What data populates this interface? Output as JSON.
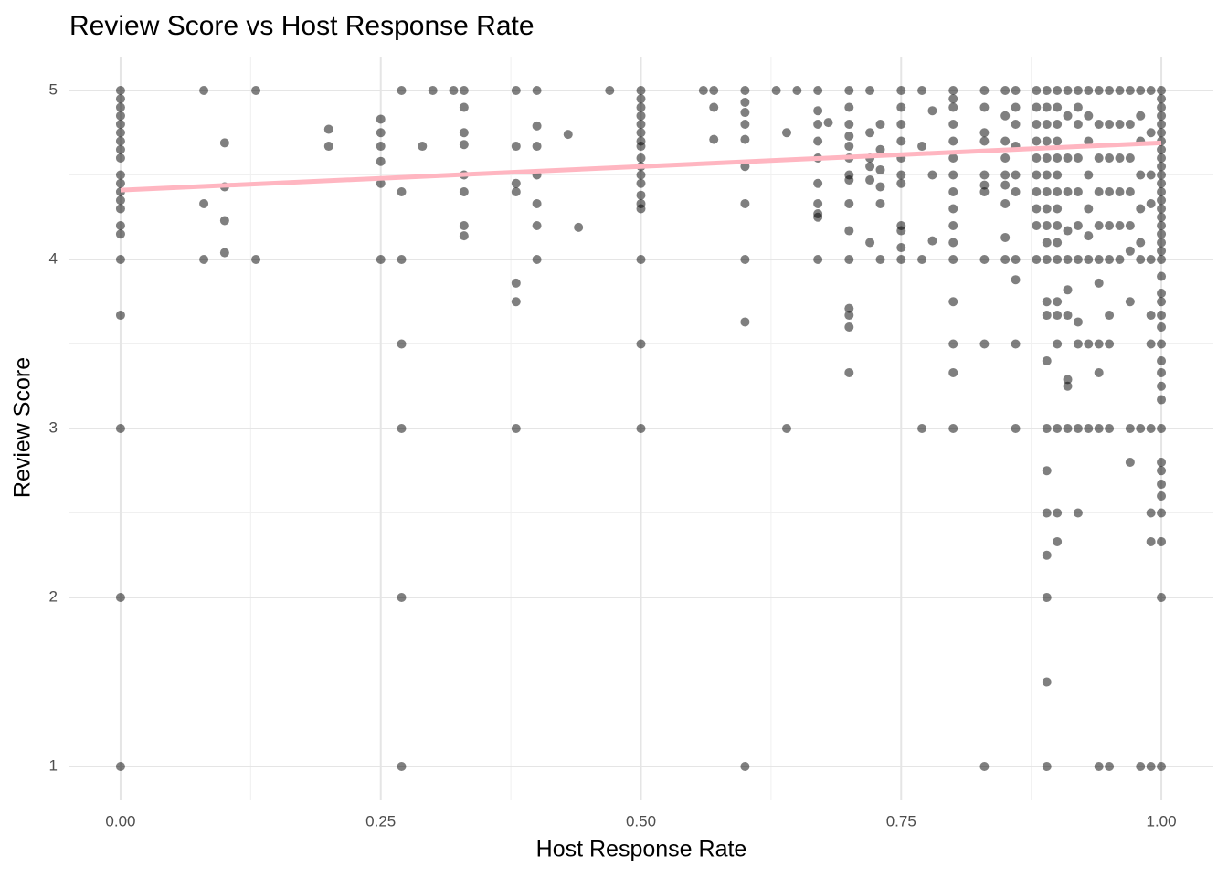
{
  "chart_data": {
    "type": "scatter",
    "title": "Review Score vs Host Response Rate",
    "x_label": "Host Response Rate",
    "y_label": "Review Score",
    "xlim": [
      -0.05,
      1.05
    ],
    "ylim": [
      0.8,
      5.2
    ],
    "xticks": [
      {
        "value": 0,
        "label": "0.00"
      },
      {
        "value": 0.25,
        "label": "0.25"
      },
      {
        "value": 0.5,
        "label": "0.50"
      },
      {
        "value": 0.75,
        "label": "0.75"
      },
      {
        "value": 1,
        "label": "1.00"
      }
    ],
    "yticks": [
      1,
      2,
      3,
      4,
      5
    ],
    "grid": true,
    "color": "#000000",
    "alpha": 0.5,
    "trend": {
      "x": [
        0,
        1
      ],
      "y": [
        4.41,
        4.69
      ],
      "color": "#FFB6C1"
    },
    "x": [
      0,
      0,
      0,
      0,
      0,
      0,
      0,
      0,
      0,
      0,
      0,
      0,
      0,
      0,
      0,
      0,
      0,
      0,
      0,
      0,
      0,
      0.08,
      0.08,
      0.08,
      0.1,
      0.1,
      0.1,
      0.1,
      0.13,
      0.13,
      0.2,
      0.2,
      0.25,
      0.25,
      0.25,
      0.25,
      0.25,
      0.25,
      0.27,
      0.27,
      0.27,
      0.27,
      0.27,
      0.27,
      0.27,
      0.29,
      0.3,
      0.32,
      0.33,
      0.33,
      0.33,
      0.33,
      0.33,
      0.33,
      0.33,
      0.33,
      0.38,
      0.38,
      0.38,
      0.38,
      0.38,
      0.38,
      0.38,
      0.4,
      0.4,
      0.4,
      0.4,
      0.4,
      0.4,
      0.4,
      0.43,
      0.44,
      0.47,
      0.5,
      0.5,
      0.5,
      0.5,
      0.5,
      0.5,
      0.5,
      0.5,
      0.5,
      0.5,
      0.5,
      0.5,
      0.5,
      0.5,
      0.5,
      0.5,
      0.5,
      0.5,
      0.56,
      0.57,
      0.57,
      0.57,
      0.6,
      0.6,
      0.6,
      0.6,
      0.6,
      0.6,
      0.6,
      0.6,
      0.6,
      0.6,
      0.63,
      0.64,
      0.64,
      0.65,
      0.67,
      0.67,
      0.67,
      0.67,
      0.67,
      0.67,
      0.67,
      0.67,
      0.67,
      0.67,
      0.68,
      0.7,
      0.7,
      0.7,
      0.7,
      0.7,
      0.7,
      0.7,
      0.7,
      0.7,
      0.7,
      0.7,
      0.7,
      0.7,
      0.7,
      0.7,
      0.72,
      0.72,
      0.72,
      0.72,
      0.72,
      0.72,
      0.73,
      0.73,
      0.73,
      0.73,
      0.73,
      0.73,
      0.75,
      0.75,
      0.75,
      0.75,
      0.75,
      0.75,
      0.75,
      0.75,
      0.75,
      0.75,
      0.75,
      0.77,
      0.77,
      0.77,
      0.77,
      0.78,
      0.78,
      0.78,
      0.8,
      0.8,
      0.8,
      0.8,
      0.8,
      0.8,
      0.8,
      0.8,
      0.8,
      0.8,
      0.8,
      0.8,
      0.8,
      0.8,
      0.8,
      0.8,
      0.83,
      0.83,
      0.83,
      0.83,
      0.83,
      0.83,
      0.83,
      0.83,
      0.83,
      0.83,
      0.85,
      0.85,
      0.85,
      0.85,
      0.85,
      0.85,
      0.85,
      0.85,
      0.85,
      0.86,
      0.86,
      0.86,
      0.86,
      0.86,
      0.86,
      0.86,
      0.86,
      0.86,
      0.86,
      0.88,
      0.88,
      0.88,
      0.88,
      0.88,
      0.88,
      0.88,
      0.88,
      0.88,
      0.88,
      0.89,
      0.89,
      0.89,
      0.89,
      0.89,
      0.89,
      0.89,
      0.89,
      0.89,
      0.89,
      0.89,
      0.89,
      0.89,
      0.89,
      0.89,
      0.89,
      0.89,
      0.89,
      0.89,
      0.89,
      0.89,
      0.9,
      0.9,
      0.9,
      0.9,
      0.9,
      0.9,
      0.9,
      0.9,
      0.9,
      0.9,
      0.9,
      0.9,
      0.9,
      0.9,
      0.9,
      0.9,
      0.9,
      0.91,
      0.91,
      0.91,
      0.91,
      0.91,
      0.91,
      0.91,
      0.91,
      0.91,
      0.91,
      0.91,
      0.92,
      0.92,
      0.92,
      0.92,
      0.92,
      0.92,
      0.92,
      0.92,
      0.92,
      0.92,
      0.92,
      0.93,
      0.93,
      0.93,
      0.93,
      0.93,
      0.93,
      0.93,
      0.93,
      0.93,
      0.94,
      0.94,
      0.94,
      0.94,
      0.94,
      0.94,
      0.94,
      0.94,
      0.94,
      0.94,
      0.94,
      0.95,
      0.95,
      0.95,
      0.95,
      0.95,
      0.95,
      0.95,
      0.95,
      0.95,
      0.95,
      0.96,
      0.96,
      0.96,
      0.96,
      0.96,
      0.96,
      0.97,
      0.97,
      0.97,
      0.97,
      0.97,
      0.97,
      0.97,
      0.97,
      0.97,
      0.98,
      0.98,
      0.98,
      0.98,
      0.98,
      0.98,
      0.98,
      0.98,
      0.98,
      0.99,
      0.99,
      0.99,
      0.99,
      0.99,
      0.99,
      0.99,
      0.99,
      0.99,
      0.99,
      0.99,
      1,
      1,
      1,
      1,
      1,
      1,
      1,
      1,
      1,
      1,
      1,
      1,
      1,
      1,
      1,
      1,
      1,
      1,
      1,
      1,
      1,
      1,
      1,
      1,
      1,
      1,
      1,
      1,
      1,
      1,
      1,
      1,
      1,
      1,
      1,
      1,
      1,
      1,
      1,
      1
    ],
    "values": [
      5,
      4.95,
      4.9,
      4.85,
      4.8,
      4.75,
      4.7,
      4.65,
      4.6,
      4.5,
      4.45,
      4.4,
      4.35,
      4.3,
      4.2,
      4.15,
      4,
      3.67,
      3,
      2,
      1,
      5,
      4.33,
      4,
      4.69,
      4.43,
      4.23,
      4.04,
      5,
      4,
      4.77,
      4.67,
      4.83,
      4.75,
      4.67,
      4.58,
      4.45,
      4,
      5,
      4.4,
      4,
      3.5,
      3,
      2,
      1,
      4.67,
      5,
      5,
      5,
      4.9,
      4.75,
      4.68,
      4.5,
      4.4,
      4.2,
      4.14,
      5,
      4.67,
      4.45,
      4.4,
      3.86,
      3.75,
      3,
      5,
      4.79,
      4.67,
      4.5,
      4.33,
      4.2,
      4,
      4.74,
      4.19,
      5,
      5,
      4.95,
      4.9,
      4.85,
      4.8,
      4.75,
      4.7,
      4.67,
      4.6,
      4.55,
      4.5,
      4.45,
      4.38,
      4.33,
      4.3,
      4,
      3.5,
      3,
      5,
      5,
      4.9,
      4.71,
      5,
      4.93,
      4.87,
      4.8,
      4.71,
      4.55,
      4.33,
      4,
      3.63,
      1,
      5,
      4.75,
      3,
      5,
      5,
      4.88,
      4.8,
      4.7,
      4.6,
      4.45,
      4.33,
      4.27,
      4.25,
      4,
      4.81,
      5,
      4.9,
      4.8,
      4.73,
      4.67,
      4.6,
      4.5,
      4.47,
      4.33,
      4.17,
      4,
      3.71,
      3.67,
      3.6,
      3.33,
      5,
      4.75,
      4.6,
      4.55,
      4.47,
      4.1,
      4.8,
      4.65,
      4.53,
      4.43,
      4.33,
      4,
      5,
      4.9,
      4.8,
      4.7,
      4.6,
      4.5,
      4.45,
      4.2,
      4.17,
      4.07,
      4,
      5,
      4.67,
      4,
      3,
      4.88,
      4.5,
      4.11,
      5,
      4.95,
      4.9,
      4.8,
      4.7,
      4.6,
      4.5,
      4.4,
      4.3,
      4.2,
      4.1,
      4,
      3.75,
      3.5,
      3.33,
      3,
      5,
      4.9,
      4.75,
      4.7,
      4.5,
      4.44,
      4.4,
      4,
      3.5,
      1,
      5,
      4.85,
      4.7,
      4.6,
      4.5,
      4.44,
      4.33,
      4.13,
      4,
      5,
      4.9,
      4.8,
      4.67,
      4.5,
      4.4,
      4,
      3.88,
      3.5,
      3,
      5,
      4.9,
      4.8,
      4.7,
      4.6,
      4.5,
      4.4,
      4.3,
      4.2,
      4,
      5,
      4.9,
      4.8,
      4.7,
      4.6,
      4.5,
      4.4,
      4.3,
      4.2,
      4.1,
      4,
      3.75,
      3.67,
      3.4,
      3,
      2.75,
      2.5,
      2.25,
      2,
      1.5,
      1,
      5,
      4.9,
      4.8,
      4.7,
      4.6,
      4.5,
      4.4,
      4.3,
      4.2,
      4.1,
      4,
      3.75,
      3.67,
      3.5,
      3,
      2.5,
      2.33,
      5,
      4.85,
      4.6,
      4.4,
      4.17,
      4,
      3.82,
      3.67,
      3.29,
      3.25,
      3,
      5,
      4.9,
      4.8,
      4.6,
      4.4,
      4.2,
      4,
      3.63,
      3.5,
      3,
      2.5,
      5,
      4.85,
      4.7,
      4.5,
      4.3,
      4.14,
      4,
      3.5,
      3,
      5,
      4.8,
      4.6,
      4.4,
      4.2,
      4,
      3.86,
      3.5,
      3.33,
      3,
      1,
      5,
      4.8,
      4.6,
      4.4,
      4.2,
      4,
      3.67,
      3.5,
      3,
      1,
      5,
      4.8,
      4.6,
      4.4,
      4.2,
      4,
      5,
      4.8,
      4.6,
      4.4,
      4.2,
      4.05,
      3.75,
      3,
      2.8,
      5,
      4.85,
      4.7,
      4.5,
      4.3,
      4.1,
      4,
      3,
      1,
      5,
      4.75,
      4.5,
      4.33,
      4,
      3.67,
      3.5,
      3,
      2.5,
      2.33,
      1,
      5,
      4.95,
      4.9,
      4.85,
      4.8,
      4.75,
      4.7,
      4.65,
      4.6,
      4.55,
      4.5,
      4.45,
      4.4,
      4.35,
      4.3,
      4.25,
      4.2,
      4.15,
      4.1,
      4.05,
      4,
      3.9,
      3.8,
      3.75,
      3.67,
      3.6,
      3.5,
      3.4,
      3.33,
      3.25,
      3.17,
      3,
      2.8,
      2.75,
      2.67,
      2.6,
      2.5,
      2.33,
      2,
      1
    ]
  }
}
